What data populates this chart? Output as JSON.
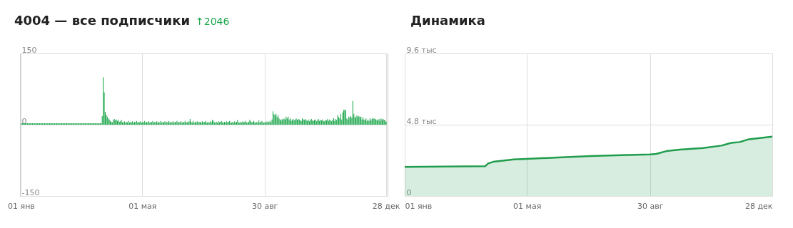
{
  "chart_data": [
    {
      "type": "bar",
      "title": "4004 — все подписчики",
      "subtitle": "↑2046",
      "color": "#1aa64a",
      "ylim": [
        -150,
        150
      ],
      "yticks": [
        -150,
        0,
        150
      ],
      "grid": true,
      "categories": [
        "01 янв",
        null,
        null,
        null,
        null,
        null,
        null,
        null,
        null,
        null,
        null,
        null,
        null,
        null,
        null,
        null,
        null,
        null,
        null,
        null,
        null,
        null,
        null,
        null,
        null,
        null,
        null,
        null,
        null,
        null,
        null,
        null,
        null,
        null,
        null,
        null,
        null,
        null,
        null,
        null,
        null,
        null,
        null,
        null,
        null,
        null,
        null,
        null,
        null,
        null,
        null,
        null,
        null,
        null,
        null,
        null,
        null,
        null,
        null,
        null,
        null,
        null,
        null,
        null,
        null,
        null,
        null,
        null,
        null,
        null,
        null,
        null,
        null,
        null,
        null,
        null,
        null,
        null,
        null,
        null,
        null,
        null,
        null,
        null,
        null,
        null,
        null,
        null,
        null,
        null,
        null,
        null,
        null,
        null,
        null,
        null,
        null,
        null,
        null,
        null,
        null,
        null,
        null,
        null,
        null,
        null,
        null,
        null,
        null,
        null,
        null,
        null,
        null,
        null,
        null,
        null,
        null,
        null,
        null,
        null,
        "01 мая",
        null,
        null,
        null,
        null,
        null,
        null,
        null,
        null,
        null,
        null,
        null,
        null,
        null,
        null,
        null,
        null,
        null,
        null,
        null,
        null,
        null,
        null,
        null,
        null,
        null,
        null,
        null,
        null,
        null,
        null,
        null,
        null,
        null,
        null,
        null,
        null,
        null,
        null,
        null,
        null,
        null,
        null,
        null,
        null,
        null,
        null,
        null,
        null,
        null,
        null,
        null,
        null,
        null,
        null,
        null,
        null,
        null,
        null,
        null,
        null,
        null,
        null,
        null,
        null,
        null,
        null,
        null,
        null,
        null,
        null,
        null,
        null,
        null,
        null,
        null,
        null,
        null,
        null,
        null,
        null,
        null,
        null,
        null,
        null,
        null,
        null,
        null,
        null,
        null,
        null,
        null,
        null,
        null,
        null,
        null,
        null,
        null,
        null,
        null,
        null,
        null,
        null,
        null,
        null,
        null,
        null,
        null,
        null,
        null,
        null,
        null,
        null,
        null,
        null,
        null,
        null,
        null,
        null,
        null,
        null,
        "30 авг",
        null,
        null,
        null,
        null,
        null,
        null,
        null,
        null,
        null,
        null,
        null,
        null,
        null,
        null,
        null,
        null,
        null,
        null,
        null,
        null,
        null,
        null,
        null,
        null,
        null,
        null,
        null,
        null,
        null,
        null,
        null,
        null,
        null,
        null,
        null,
        null,
        null,
        null,
        null,
        null,
        null,
        null,
        null,
        null,
        null,
        null,
        null,
        null,
        null,
        null,
        null,
        null,
        null,
        null,
        null,
        null,
        null,
        null,
        null,
        null,
        null,
        null,
        null,
        null,
        null,
        null,
        null,
        null,
        null,
        null,
        null,
        null,
        null,
        null,
        null,
        null,
        null,
        null,
        null,
        null,
        null,
        null,
        null,
        null,
        null,
        null,
        null,
        null,
        null,
        null,
        null,
        null,
        null,
        null,
        null,
        null,
        null,
        null,
        null,
        null,
        null,
        null,
        null,
        null,
        null,
        null,
        null,
        null,
        null,
        null,
        null,
        null,
        null,
        null,
        null,
        null,
        null,
        null,
        null,
        "28 дек"
      ],
      "values": [
        3,
        3,
        3,
        3,
        3,
        3,
        3,
        3,
        3,
        3,
        3,
        3,
        3,
        3,
        3,
        3,
        3,
        3,
        3,
        3,
        3,
        3,
        3,
        3,
        3,
        3,
        3,
        3,
        3,
        3,
        3,
        3,
        3,
        3,
        3,
        3,
        3,
        3,
        3,
        3,
        3,
        3,
        3,
        3,
        3,
        3,
        3,
        3,
        3,
        3,
        3,
        3,
        3,
        3,
        3,
        3,
        3,
        3,
        3,
        3,
        3,
        3,
        3,
        3,
        3,
        3,
        3,
        3,
        3,
        3,
        3,
        3,
        3,
        3,
        3,
        3,
        3,
        3,
        3,
        3,
        18,
        100,
        68,
        27,
        21,
        17,
        13,
        11,
        8,
        6,
        5,
        10,
        12,
        9,
        11,
        8,
        10,
        6,
        7,
        10,
        5,
        5,
        7,
        4,
        6,
        5,
        8,
        4,
        6,
        5,
        7,
        4,
        6,
        5,
        8,
        4,
        6,
        5,
        7,
        4,
        6,
        5,
        8,
        4,
        6,
        5,
        7,
        4,
        6,
        5,
        8,
        4,
        6,
        5,
        7,
        4,
        6,
        5,
        8,
        4,
        6,
        5,
        7,
        4,
        6,
        5,
        8,
        4,
        6,
        5,
        7,
        4,
        6,
        5,
        8,
        4,
        6,
        5,
        7,
        4,
        6,
        5,
        8,
        4,
        6,
        5,
        7,
        12,
        6,
        5,
        8,
        4,
        6,
        5,
        7,
        4,
        6,
        6,
        4,
        7,
        5,
        6,
        8,
        5,
        4,
        6,
        4,
        7,
        5,
        10,
        8,
        5,
        4,
        6,
        4,
        7,
        5,
        6,
        8,
        5,
        4,
        6,
        4,
        7,
        5,
        6,
        8,
        5,
        4,
        6,
        4,
        7,
        5,
        6,
        10,
        5,
        4,
        6,
        4,
        7,
        5,
        6,
        8,
        5,
        4,
        6,
        10,
        7,
        5,
        6,
        8,
        5,
        4,
        6,
        4,
        9,
        5,
        6,
        8,
        5,
        4,
        6,
        4,
        7,
        5,
        6,
        8,
        5,
        11,
        28,
        22,
        20,
        23,
        16,
        20,
        13,
        11,
        9,
        12,
        10,
        13,
        11,
        17,
        13,
        17,
        11,
        13,
        8,
        10,
        12,
        9,
        11,
        13,
        10,
        12,
        11,
        9,
        8,
        13,
        11,
        10,
        12,
        9,
        8,
        11,
        7,
        10,
        12,
        9,
        8,
        10,
        11,
        7,
        9,
        12,
        8,
        10,
        9,
        11,
        8,
        7,
        10,
        9,
        12,
        8,
        11,
        9,
        7,
        10,
        14,
        8,
        12,
        10,
        20,
        16,
        13,
        23,
        11,
        26,
        31,
        32,
        30,
        13,
        11,
        17,
        15,
        18,
        15,
        50,
        23,
        17,
        15,
        20,
        17,
        18,
        16,
        17,
        11,
        16,
        11,
        10,
        13,
        8,
        11,
        8,
        13,
        9,
        12,
        14,
        13,
        12,
        11,
        9,
        10,
        12,
        8,
        13,
        11,
        12,
        10,
        9,
        6
      ]
    },
    {
      "type": "area",
      "title": "Динамика",
      "color": "#1f9d4c",
      "ylim": [
        0,
        9.6
      ],
      "yticks": [
        0,
        {
          "value": 4.8,
          "label": "4.8 тыс"
        },
        {
          "value": 9.6,
          "label": "9.6 тыс"
        }
      ],
      "grid": true,
      "xlim": [
        "--01-01",
        "--12-28"
      ],
      "xticks": [
        {
          "value": "--01-01",
          "label": "01 янв"
        },
        {
          "value": "--05-01",
          "label": "01 мая"
        },
        {
          "value": "--08-30",
          "label": "30 авг"
        },
        {
          "value": "--12-28",
          "label": "28 дек"
        }
      ],
      "x": [
        "--01-01",
        "--03-21",
        "--03-24",
        "--03-29",
        "--04-18",
        "--05-01",
        "--06-01",
        "--07-03",
        "--08-02",
        "--08-30",
        "--09-05",
        "--09-15",
        "--09-28",
        "--10-21",
        "--11-08",
        "--11-18",
        "--11-26",
        "--12-05",
        "--12-28"
      ],
      "values": [
        1.96,
        2.0,
        2.19,
        2.3,
        2.46,
        2.5,
        2.59,
        2.69,
        2.75,
        2.8,
        2.83,
        3.02,
        3.12,
        3.23,
        3.39,
        3.58,
        3.63,
        3.82,
        4.0
      ]
    }
  ]
}
